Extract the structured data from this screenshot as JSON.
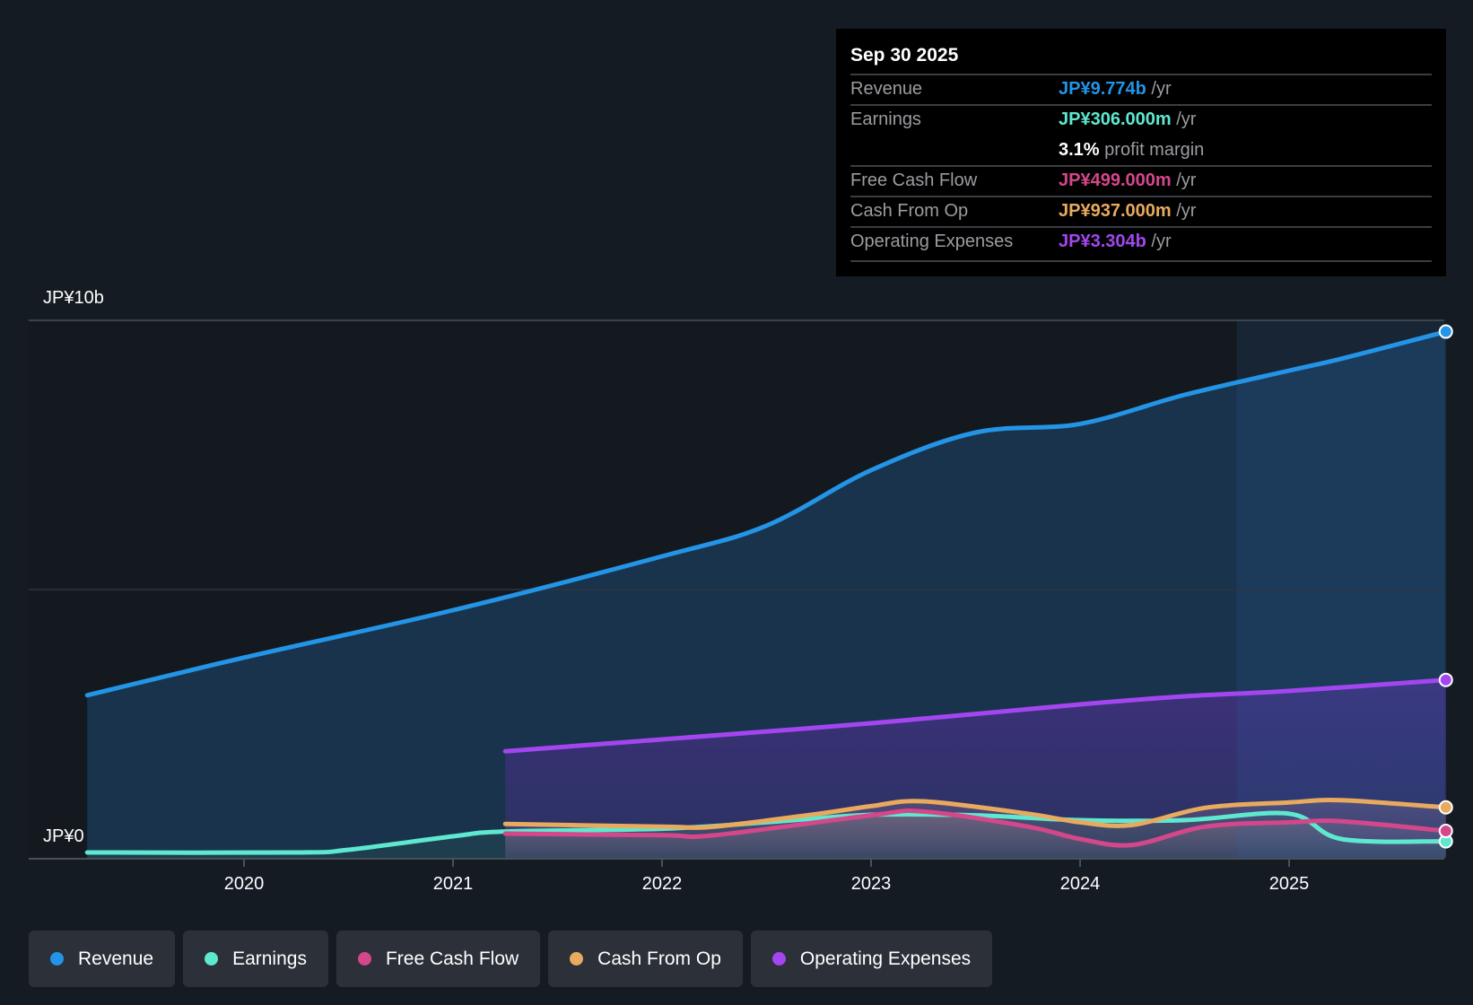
{
  "tooltip": {
    "date": "Sep 30 2025",
    "rows": [
      {
        "label": "Revenue",
        "value": "JP¥9.774b",
        "unit": "/yr",
        "color": "#2394e6"
      },
      {
        "label": "Earnings",
        "value": "JP¥306.000m",
        "unit": "/yr",
        "color": "#5ee8cf"
      },
      {
        "label": "",
        "value": "3.1%",
        "unit": "profit margin",
        "color": "#ffffff"
      },
      {
        "label": "Free Cash Flow",
        "value": "JP¥499.000m",
        "unit": "/yr",
        "color": "#d4478a"
      },
      {
        "label": "Cash From Op",
        "value": "JP¥937.000m",
        "unit": "/yr",
        "color": "#e8aa5e"
      },
      {
        "label": "Operating Expenses",
        "value": "JP¥3.304b",
        "unit": "/yr",
        "color": "#a346f0"
      }
    ]
  },
  "chart_data": {
    "type": "line",
    "title": "",
    "ylabel": "",
    "xlabel": "",
    "y_tick_labels": {
      "top": "JP¥10b",
      "bottom": "JP¥0"
    },
    "ylim": [
      0,
      10
    ],
    "xlim": [
      2019.0,
      2025.75
    ],
    "x_ticks": [
      "2020",
      "2021",
      "2022",
      "2023",
      "2024",
      "2025"
    ],
    "highlight_from": 2024.75,
    "series": [
      {
        "name": "Revenue",
        "color": "#2394e6",
        "x": [
          2019.25,
          2020,
          2021,
          2022,
          2022.5,
          2023,
          2023.5,
          2024,
          2024.5,
          2025,
          2025.25,
          2025.75
        ],
        "y": [
          3.02,
          3.72,
          4.6,
          5.6,
          6.17,
          7.2,
          7.9,
          8.06,
          8.6,
          9.05,
          9.27,
          9.774
        ]
      },
      {
        "name": "Operating Expenses",
        "color": "#a346f0",
        "x": [
          2021.25,
          2022,
          2023,
          2024,
          2024.5,
          2025,
          2025.75
        ],
        "y": [
          1.98,
          2.2,
          2.5,
          2.85,
          3.0,
          3.1,
          3.304
        ]
      },
      {
        "name": "Earnings",
        "color": "#5ee8cf",
        "x": [
          2019.25,
          2020.25,
          2020.5,
          2021,
          2021.25,
          2022,
          2022.5,
          2023,
          2023.5,
          2024,
          2024.5,
          2025,
          2025.25,
          2025.75
        ],
        "y": [
          0.1,
          0.1,
          0.15,
          0.4,
          0.49,
          0.54,
          0.66,
          0.8,
          0.79,
          0.7,
          0.7,
          0.82,
          0.35,
          0.306
        ]
      },
      {
        "name": "Free Cash Flow",
        "color": "#d4478a",
        "x": [
          2021.25,
          2022,
          2022.25,
          2023,
          2023.25,
          2023.75,
          2024,
          2024.25,
          2024.6,
          2025,
          2025.25,
          2025.75
        ],
        "y": [
          0.45,
          0.42,
          0.42,
          0.79,
          0.86,
          0.58,
          0.35,
          0.24,
          0.58,
          0.66,
          0.68,
          0.499
        ]
      },
      {
        "name": "Cash From Op",
        "color": "#e8aa5e",
        "x": [
          2021.25,
          2022,
          2022.25,
          2022.75,
          2023,
          2023.25,
          2023.75,
          2024,
          2024.25,
          2024.6,
          2025,
          2025.25,
          2025.75
        ],
        "y": [
          0.63,
          0.58,
          0.58,
          0.82,
          0.96,
          1.05,
          0.82,
          0.66,
          0.61,
          0.93,
          1.03,
          1.07,
          0.937
        ]
      }
    ]
  },
  "legend": [
    {
      "label": "Revenue",
      "color": "#2394e6"
    },
    {
      "label": "Earnings",
      "color": "#5ee8cf"
    },
    {
      "label": "Free Cash Flow",
      "color": "#d4478a"
    },
    {
      "label": "Cash From Op",
      "color": "#e8aa5e"
    },
    {
      "label": "Operating Expenses",
      "color": "#a346f0"
    }
  ]
}
